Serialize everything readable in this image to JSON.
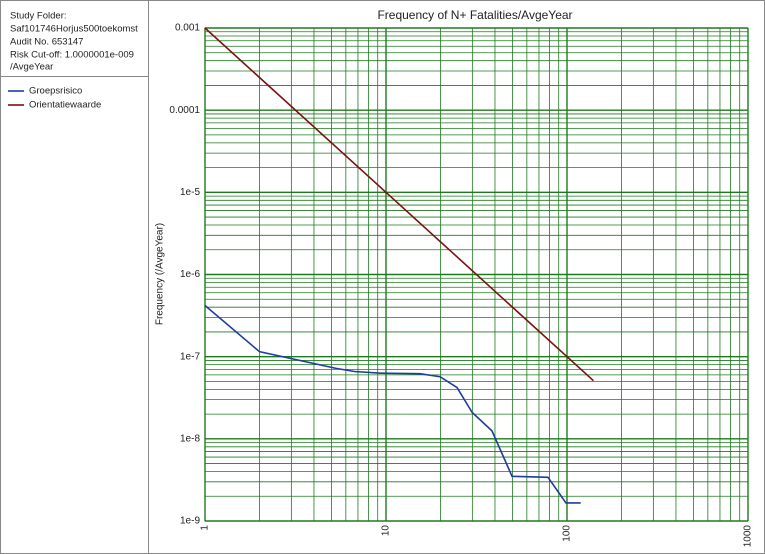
{
  "info": {
    "lines": [
      "Study Folder:",
      "Saf101746Horjus500toekomst",
      "Audit No. 653147",
      "Risk Cut-off: 1.0000001e-009",
      "/AvgeYear"
    ]
  },
  "chart_data": {
    "type": "line",
    "title": "Frequency of N+ Fatalities/AvgeYear",
    "y_label": "Frequency (/AvgeYear)",
    "xscale": "log",
    "yscale": "log",
    "grid": true,
    "minor_grid": true,
    "grid_color": "#1e7a1e",
    "xlim": [
      1,
      1000
    ],
    "xticks": [
      1,
      10,
      100,
      1000
    ],
    "ylim": [
      1e-09,
      0.001
    ],
    "yticks": [
      {
        "value": 1e-09,
        "label": "1e-9"
      },
      {
        "value": 1e-08,
        "label": "1e-8"
      },
      {
        "value": 1e-07,
        "label": "1e-7"
      },
      {
        "value": 1e-06,
        "label": "1e-6"
      },
      {
        "value": 1e-05,
        "label": "1e-5"
      },
      0.0001,
      0.001
    ],
    "series": [
      {
        "name": "Groepsrisico",
        "color": "#1f3c9e",
        "x": [
          1,
          2,
          5.3,
          6.7,
          9.3,
          15.4,
          19.9,
          24.7,
          29.9,
          38.5,
          49.7,
          78.5,
          98.7,
          119
        ],
        "values": [
          4.2e-07,
          1.15e-07,
          7.2e-08,
          6.6e-08,
          6.3e-08,
          6.2e-08,
          5.7e-08,
          4.2e-08,
          2.1e-08,
          1.25e-08,
          3.5e-09,
          3.4e-09,
          1.66e-09,
          1.66e-09
        ]
      },
      {
        "name": "Orientatiewaarde",
        "color": "#7a1212",
        "x": [
          1,
          140
        ],
        "values": [
          0.001,
          5.1e-08
        ]
      }
    ]
  }
}
